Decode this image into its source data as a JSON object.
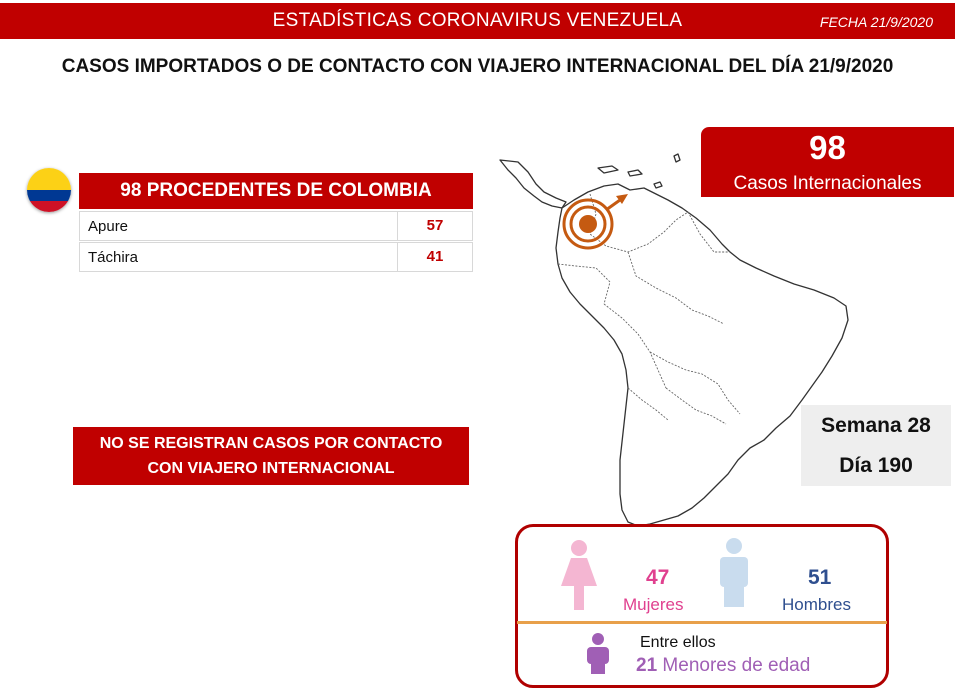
{
  "header": {
    "title": "ESTADÍSTICAS CORONAVIRUS VENEZUELA",
    "fecha": "FECHA 21/9/2020"
  },
  "headline": "CASOS IMPORTADOS O DE CONTACTO CON VIAJERO INTERNACIONAL DEL DÍA  21/9/2020",
  "colombia": {
    "title": "98 PROCEDENTES DE COLOMBIA",
    "rows": [
      {
        "state": "Apure",
        "value": "57"
      },
      {
        "state": "Táchira",
        "value": "41"
      }
    ],
    "flag_colors": [
      "#fcd116",
      "#003893",
      "#ce1126"
    ]
  },
  "cases": {
    "number": "98",
    "label": "Casos Internacionales"
  },
  "no_contact": {
    "line1": "NO SE REGISTRAN CASOS POR CONTACTO",
    "line2": "CON VIAJERO INTERNACIONAL"
  },
  "week": {
    "semana": "Semana 28",
    "dia": "Día 190"
  },
  "gender": {
    "women": {
      "count": "47",
      "label": "Mujeres",
      "color": "#e0408f"
    },
    "men": {
      "count": "51",
      "label": "Hombres",
      "color": "#2f4f8f"
    },
    "minors_intro": "Entre ellos",
    "minors_count": "21",
    "minors_label": "Menores de edad",
    "minors_color": "#a05fb5"
  },
  "colors": {
    "brand_red": "#c00000",
    "marker_orange": "#c55a11"
  }
}
